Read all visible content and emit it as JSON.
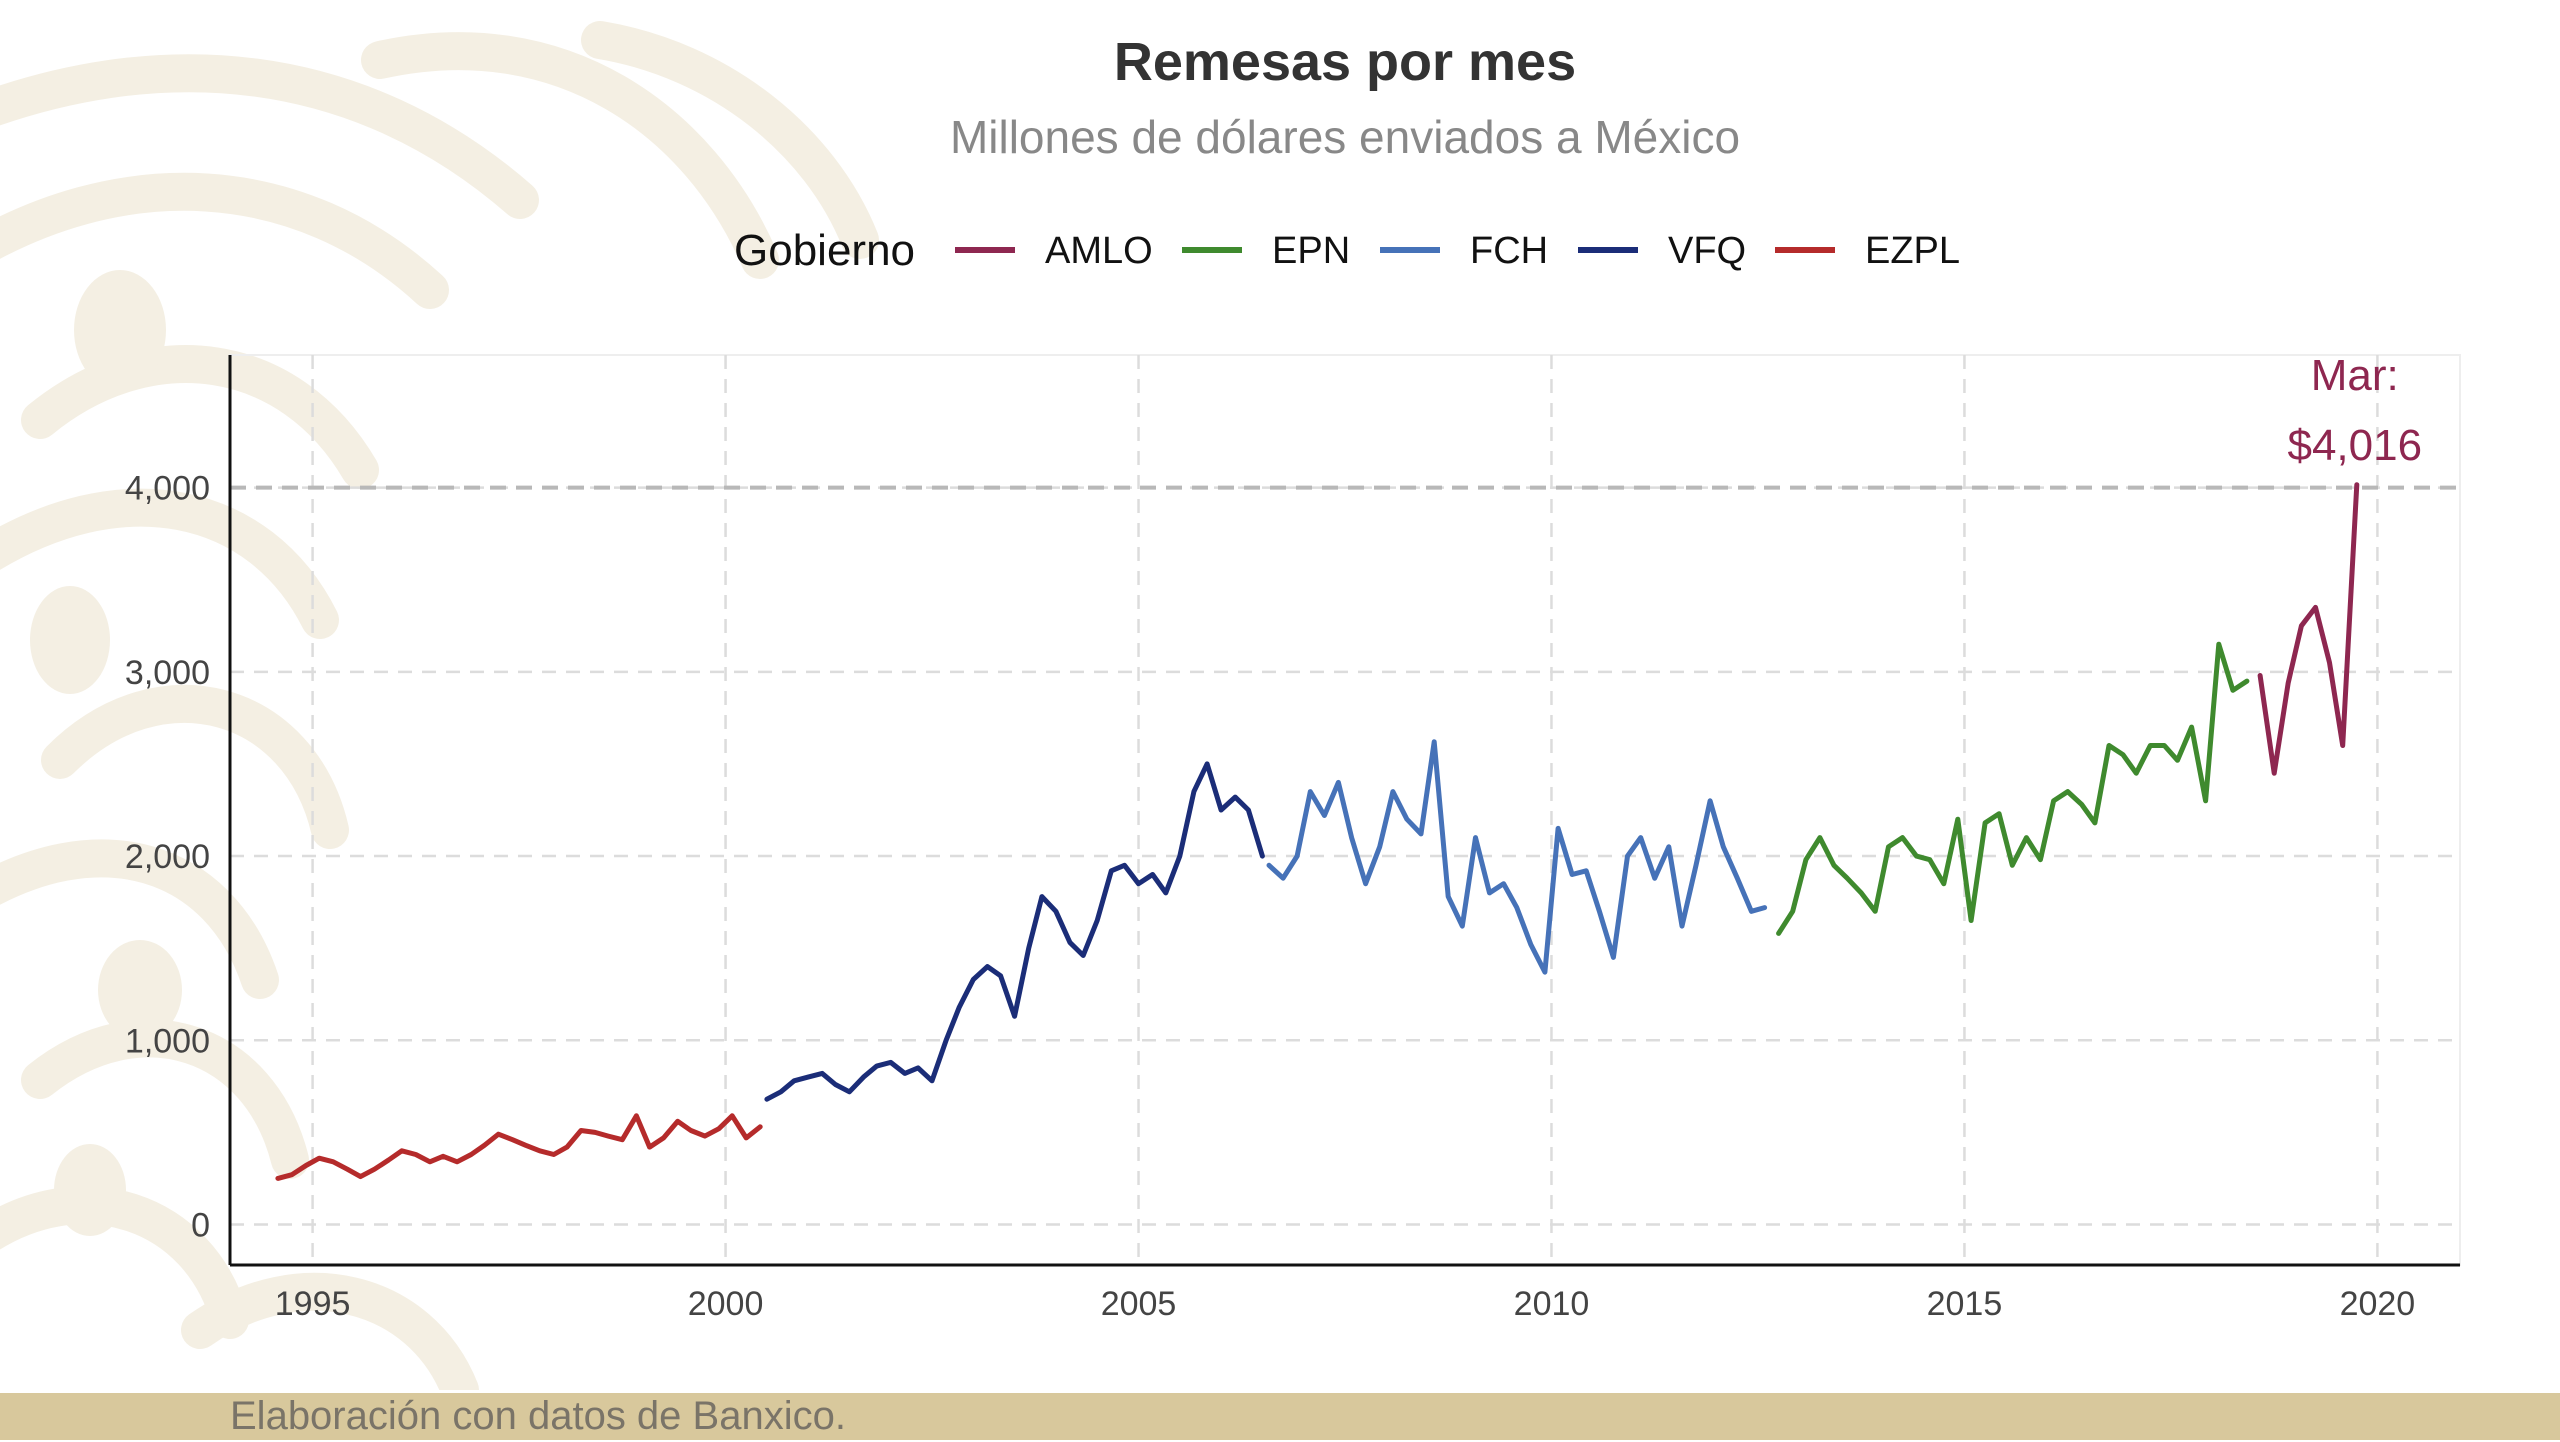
{
  "colors": {
    "AMLO": "#8e2750",
    "EPN": "#3f8a2e",
    "FCH": "#4672b8",
    "VFQ": "#1b2d78",
    "EZPL": "#b52b2b",
    "footer_band": "#d8c89c",
    "motif": "#f4efe3"
  },
  "footer": {
    "source_note": "Elaboración con datos de Banxico."
  },
  "chart_data": {
    "type": "line",
    "title": "Remesas por mes",
    "subtitle": "Millones de dólares enviados a México",
    "legend_title": "Gobierno",
    "legend_position": "top",
    "legend_entries": [
      "AMLO",
      "EPN",
      "FCH",
      "VFQ",
      "EZPL"
    ],
    "xlabel": "",
    "ylabel": "",
    "xlim": [
      1994.0,
      2021.0
    ],
    "ylim": [
      -220,
      4720
    ],
    "x_ticks": [
      1995,
      2000,
      2005,
      2010,
      2015,
      2020
    ],
    "x_tick_labels": [
      "1995",
      "2000",
      "2005",
      "2010",
      "2015",
      "2020"
    ],
    "y_ticks": [
      0,
      1000,
      2000,
      3000,
      4000
    ],
    "y_tick_labels": [
      "0",
      "1,000",
      "2,000",
      "3,000",
      "4,000"
    ],
    "grid": true,
    "reference_line": {
      "y": 4000,
      "style": "dashed"
    },
    "annotation": {
      "line1": "Mar:",
      "line2": "$4,016",
      "x": 2019.75,
      "y": 4016,
      "series": "AMLO"
    },
    "series": [
      {
        "name": "EZPL",
        "x": [
          1994.58,
          1994.75,
          1994.92,
          1995.08,
          1995.25,
          1995.42,
          1995.58,
          1995.75,
          1995.92,
          1996.08,
          1996.25,
          1996.42,
          1996.58,
          1996.75,
          1996.92,
          1997.08,
          1997.25,
          1997.42,
          1997.58,
          1997.75,
          1997.92,
          1998.08,
          1998.25,
          1998.42,
          1998.58,
          1998.75,
          1998.92,
          1999.08,
          1999.25,
          1999.42,
          1999.58,
          1999.75,
          1999.92,
          2000.08,
          2000.25,
          2000.42
        ],
        "values": [
          250,
          270,
          320,
          360,
          340,
          300,
          260,
          300,
          350,
          400,
          380,
          340,
          370,
          340,
          380,
          430,
          490,
          460,
          430,
          400,
          380,
          420,
          510,
          500,
          480,
          460,
          590,
          420,
          470,
          560,
          510,
          480,
          520,
          590,
          470,
          530
        ]
      },
      {
        "name": "VFQ",
        "x": [
          2000.5,
          2000.67,
          2000.83,
          2001.0,
          2001.17,
          2001.33,
          2001.5,
          2001.67,
          2001.83,
          2002.0,
          2002.17,
          2002.33,
          2002.5,
          2002.67,
          2002.83,
          2003.0,
          2003.17,
          2003.33,
          2003.5,
          2003.67,
          2003.83,
          2004.0,
          2004.17,
          2004.33,
          2004.5,
          2004.67,
          2004.83,
          2005.0,
          2005.17,
          2005.33,
          2005.5,
          2005.67,
          2005.83,
          2006.0,
          2006.17,
          2006.33,
          2006.5
        ],
        "values": [
          680,
          720,
          780,
          800,
          820,
          760,
          720,
          800,
          860,
          880,
          820,
          850,
          780,
          1000,
          1180,
          1330,
          1400,
          1350,
          1130,
          1500,
          1780,
          1700,
          1530,
          1460,
          1650,
          1920,
          1950,
          1850,
          1900,
          1800,
          2000,
          2350,
          2500,
          2250,
          2320,
          2250,
          2000
        ]
      },
      {
        "name": "FCH",
        "x": [
          2006.58,
          2006.75,
          2006.92,
          2007.08,
          2007.25,
          2007.42,
          2007.58,
          2007.75,
          2007.92,
          2008.08,
          2008.25,
          2008.42,
          2008.58,
          2008.75,
          2008.92,
          2009.08,
          2009.25,
          2009.42,
          2009.58,
          2009.75,
          2009.92,
          2010.08,
          2010.25,
          2010.42,
          2010.58,
          2010.75,
          2010.92,
          2011.08,
          2011.25,
          2011.42,
          2011.58,
          2011.75,
          2011.92,
          2012.08,
          2012.25,
          2012.42,
          2012.58
        ],
        "values": [
          1950,
          1880,
          2000,
          2350,
          2220,
          2400,
          2100,
          1850,
          2050,
          2350,
          2200,
          2120,
          2620,
          1780,
          1620,
          2100,
          1800,
          1850,
          1720,
          1520,
          1370,
          2150,
          1900,
          1920,
          1700,
          1450,
          2000,
          2100,
          1880,
          2050,
          1620,
          1950,
          2300,
          2050,
          1880,
          1700,
          1720
        ]
      },
      {
        "name": "EPN",
        "x": [
          2012.75,
          2012.92,
          2013.08,
          2013.25,
          2013.42,
          2013.58,
          2013.75,
          2013.92,
          2014.08,
          2014.25,
          2014.42,
          2014.58,
          2014.75,
          2014.92,
          2015.08,
          2015.25,
          2015.42,
          2015.58,
          2015.75,
          2015.92,
          2016.08,
          2016.25,
          2016.42,
          2016.58,
          2016.75,
          2016.92,
          2017.08,
          2017.25,
          2017.42,
          2017.58,
          2017.75,
          2017.92,
          2018.08,
          2018.25,
          2018.42
        ],
        "values": [
          1580,
          1700,
          1980,
          2100,
          1950,
          1880,
          1800,
          1700,
          2050,
          2100,
          2000,
          1980,
          1850,
          2200,
          1650,
          2180,
          2230,
          1950,
          2100,
          1980,
          2300,
          2350,
          2280,
          2180,
          2600,
          2550,
          2450,
          2600,
          2600,
          2520,
          2700,
          2300,
          3150,
          2900,
          2950
        ]
      },
      {
        "name": "AMLO",
        "x": [
          2018.58,
          2018.75,
          2018.92,
          2019.08,
          2019.25,
          2019.42,
          2019.58,
          2019.75
        ],
        "values": [
          2980,
          2450,
          2940,
          3250,
          3350,
          3050,
          2600,
          4016
        ]
      }
    ]
  }
}
